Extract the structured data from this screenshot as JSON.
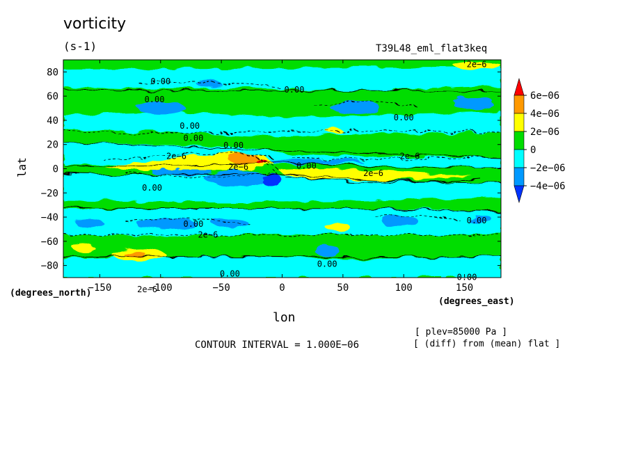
{
  "chart_data": {
    "type": "heatmap",
    "title": "vorticity",
    "units": "(s-1)",
    "run_name": "T39L48_eml_flat3keq",
    "xlabel": "lon",
    "ylabel": "lat",
    "xlabel_units": "(degrees_east)",
    "ylabel_units": "(degrees_north)",
    "xlim": [
      -180,
      180
    ],
    "ylim": [
      -90,
      90
    ],
    "x_ticks": [
      -150,
      -100,
      -50,
      0,
      50,
      100,
      150
    ],
    "y_ticks": [
      80,
      60,
      40,
      20,
      0,
      -20,
      -40,
      -60,
      -80
    ],
    "x_tick_labels": [
      "−150",
      "−100",
      "−50",
      "0",
      "50",
      "100",
      "150"
    ],
    "y_tick_labels": [
      "80",
      "60",
      "40",
      "20",
      "0",
      "−20",
      "−40",
      "−60",
      "−80"
    ],
    "colorbar": {
      "labels": [
        "6e−06",
        "4e−06",
        "2e−06",
        "0",
        "−2e−06",
        "−4e−06"
      ],
      "colors": [
        "#ff0000",
        "#ff9900",
        "#ffff00",
        "#00dd00",
        "#00ffff",
        "#0099ff",
        "#0033ff"
      ]
    },
    "contour_interval": "CONTOUR INTERVAL = 1.000E−06",
    "notes": [
      "[ plev=85000 Pa ]",
      "[ (diff) from (mean) flat ]"
    ],
    "contour_labels": [
      {
        "text": "0.00",
        "lon": -100,
        "lat": 70
      },
      {
        "text": "0.00",
        "lon": 10,
        "lat": 63
      },
      {
        "text": "0.00",
        "lon": -105,
        "lat": 55
      },
      {
        "text": "0.00",
        "lon": 100,
        "lat": 40
      },
      {
        "text": "0.00",
        "lon": -76,
        "lat": 33
      },
      {
        "text": "0.00",
        "lon": -73,
        "lat": 23
      },
      {
        "text": "0.00",
        "lon": -40,
        "lat": 17
      },
      {
        "text": "2e−6",
        "lon": -87,
        "lat": 8
      },
      {
        "text": "2e−6",
        "lon": 105,
        "lat": 8
      },
      {
        "text": "2e−6",
        "lon": -36,
        "lat": -1
      },
      {
        "text": "0.00",
        "lon": 20,
        "lat": 0
      },
      {
        "text": "2e−6",
        "lon": 75,
        "lat": -6
      },
      {
        "text": "0.00",
        "lon": -107,
        "lat": -18
      },
      {
        "text": "0.00",
        "lon": -73,
        "lat": -48
      },
      {
        "text": "2e−6",
        "lon": -61,
        "lat": -57
      },
      {
        "text": "0.00",
        "lon": 160,
        "lat": -45
      },
      {
        "text": "0.00",
        "lon": 37,
        "lat": -81
      },
      {
        "text": "0.00",
        "lon": -43,
        "lat": -89
      },
      {
        "text": "0.00",
        "lon": 152,
        "lat": -92
      },
      {
        "text": "2e−6",
        "lon": -111,
        "lat": -102
      },
      {
        "text": "2e−6",
        "lon": 160,
        "lat": 84
      }
    ]
  }
}
